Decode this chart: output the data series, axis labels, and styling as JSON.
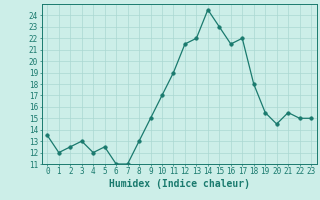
{
  "xlabel": "Humidex (Indice chaleur)",
  "x": [
    0,
    1,
    2,
    3,
    4,
    5,
    6,
    7,
    8,
    9,
    10,
    11,
    12,
    13,
    14,
    15,
    16,
    17,
    18,
    19,
    20,
    21,
    22,
    23
  ],
  "y": [
    13.5,
    12.0,
    12.5,
    13.0,
    12.0,
    12.5,
    11.0,
    11.0,
    13.0,
    15.0,
    17.0,
    19.0,
    21.5,
    22.0,
    24.5,
    23.0,
    21.5,
    22.0,
    18.0,
    15.5,
    14.5,
    15.5,
    15.0,
    15.0
  ],
  "line_color": "#1a7a6e",
  "marker_size": 2.5,
  "background_color": "#cceee8",
  "grid_color": "#aad8d2",
  "ylim": [
    11,
    25
  ],
  "xlim": [
    -0.5,
    23.5
  ],
  "yticks": [
    11,
    12,
    13,
    14,
    15,
    16,
    17,
    18,
    19,
    20,
    21,
    22,
    23,
    24
  ],
  "xticks": [
    0,
    1,
    2,
    3,
    4,
    5,
    6,
    7,
    8,
    9,
    10,
    11,
    12,
    13,
    14,
    15,
    16,
    17,
    18,
    19,
    20,
    21,
    22,
    23
  ],
  "tick_label_color": "#1a7a6e",
  "axis_color": "#1a7a6e",
  "xlabel_color": "#1a7a6e",
  "xlabel_fontsize": 7,
  "tick_fontsize": 5.5
}
